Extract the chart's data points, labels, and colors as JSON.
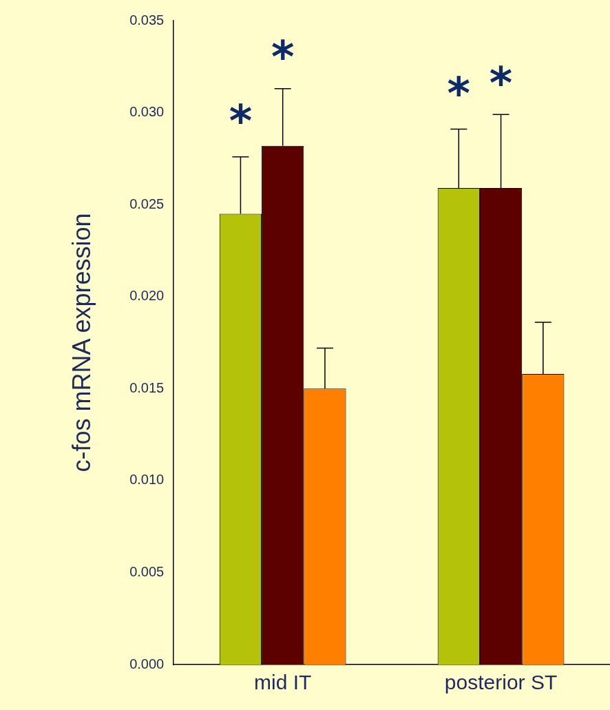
{
  "chart_data": {
    "type": "bar",
    "ylabel": "c-fos mRNA expression",
    "categories": [
      "mid IT",
      "posterior ST"
    ],
    "series": [
      {
        "color": "#b5c20a",
        "values": [
          0.0245,
          0.0259
        ],
        "errors": [
          [
            0.0245,
            0.0276
          ],
          [
            0.0259,
            0.0291
          ]
        ]
      },
      {
        "color": "#5c0000",
        "values": [
          0.0282,
          0.0259
        ],
        "errors": [
          [
            0.0282,
            0.0313
          ],
          [
            0.0259,
            0.0299
          ]
        ]
      },
      {
        "color": "#ff8000",
        "values": [
          0.015,
          0.0158
        ],
        "errors": [
          [
            0.015,
            0.0172
          ],
          [
            0.0158,
            0.0186
          ]
        ]
      }
    ],
    "ylim": [
      0,
      0.035
    ],
    "yticks": [
      {
        "value": 0,
        "label": "0.000"
      },
      {
        "value": 0.005,
        "label": "0.005"
      },
      {
        "value": 0.01,
        "label": "0.010"
      },
      {
        "value": 0.015,
        "label": "0.015"
      },
      {
        "value": 0.02,
        "label": "0.020"
      },
      {
        "value": 0.025,
        "label": "0.025"
      },
      {
        "value": 0.03,
        "label": "0.030"
      },
      {
        "value": 0.035,
        "label": "0.035"
      }
    ],
    "annotations": [
      "*",
      "*",
      "*",
      "*"
    ],
    "grid": false,
    "legend": false
  }
}
